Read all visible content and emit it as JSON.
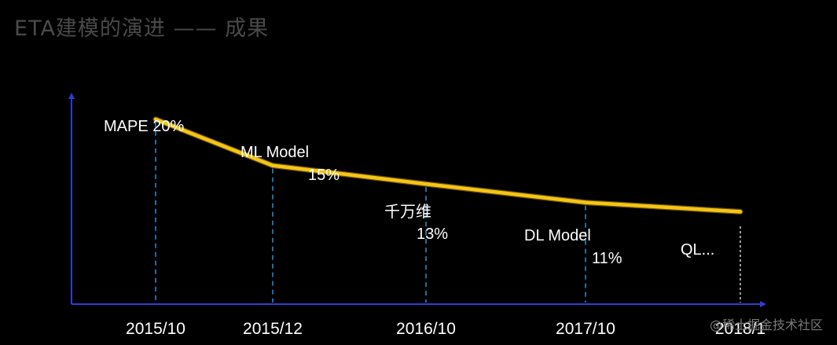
{
  "slide": {
    "title": "ETA建模的演进 —— 成果",
    "watermark": "@稀土掘金技术社区"
  },
  "colors": {
    "background": "#000000",
    "axis": "#2f3bd6",
    "line": "#f5c518",
    "guide": "#2f8fd6",
    "text": "#ffffff",
    "title": "#4a4a4a"
  },
  "chart_data": {
    "type": "line",
    "title": "",
    "xlabel": "",
    "ylabel": "",
    "categories": [
      "2015/10",
      "2015/12",
      "2016/10",
      "2017/10",
      "2018/1"
    ],
    "series": [
      {
        "values": [
          20,
          15,
          13,
          11,
          10
        ]
      }
    ],
    "ylim": [
      0,
      25
    ],
    "grid": false,
    "annotations": [
      {
        "category": "2015/10",
        "text": "MAPE 20%"
      },
      {
        "category": "2015/12",
        "text": "ML Model"
      },
      {
        "category": "2015/12",
        "text": "15%"
      },
      {
        "category": "2016/10",
        "text": "千万维"
      },
      {
        "category": "2016/10",
        "text": "13%"
      },
      {
        "category": "2017/10",
        "text": "DL Model"
      },
      {
        "category": "2017/10",
        "text": "11%"
      },
      {
        "category": "2018/1",
        "text": "QL..."
      }
    ]
  }
}
